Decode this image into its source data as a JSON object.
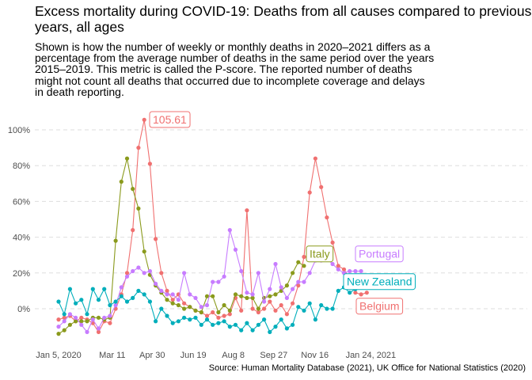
{
  "chart_data": {
    "type": "line",
    "title_line1": "Excess mortality during COVID-19: Deaths from all causes compared to previous",
    "title_line2": "years, all ages",
    "subtitle_lines": [
      "Shown is how the number of weekly or monthly deaths in 2020–2021 differs as a",
      "percentage from the average number of deaths in the same period over the years",
      "2015–2019. This metric is called the P-score. The reported number of deaths",
      "might not count all deaths that occurred due to incomplete coverage and delays",
      "in death reporting."
    ],
    "caption": "Source: Human Mortality Database (2021), UK Office for National Statistics (2020)",
    "y_tick_labels": [
      "0%",
      "20%",
      "40%",
      "60%",
      "80%",
      "100%"
    ],
    "y_ticks": [
      0,
      20,
      40,
      60,
      80,
      100
    ],
    "ylim": [
      -17,
      105.61
    ],
    "x_tick_labels": [
      "Jan 5, 2020",
      "Mar 11",
      "Apr 30",
      "Jun 19",
      "Aug 8",
      "Sep 27",
      "Nov 16",
      "Jan 24, 2021"
    ],
    "x_tick_weeks": [
      0,
      9.4,
      16.4,
      23.6,
      30.6,
      37.7,
      44.9,
      54.7
    ],
    "x_unit": "weeks since Jan 5, 2020",
    "grid": "horizontal dashed",
    "legend": "direct labels",
    "series": [
      {
        "name": "Belgium",
        "color": "#f07070",
        "label_at_week": 51.5,
        "values": [
          -6,
          -5,
          -4,
          -7,
          -5,
          -6,
          -8,
          -13,
          -7,
          -8,
          0,
          8,
          20,
          44,
          90,
          105.61,
          81,
          39,
          20,
          10,
          5,
          8,
          3,
          1,
          -1,
          -2,
          -4,
          -2,
          -5,
          -4,
          -3,
          6,
          -1,
          55,
          0,
          -2,
          0,
          4,
          -1,
          2,
          -3,
          3,
          13,
          29,
          65,
          84,
          68,
          51,
          37,
          24,
          22,
          17,
          9,
          8,
          9
        ],
        "x_start": 0
      },
      {
        "name": "Italy",
        "color": "#8a9a1c",
        "label_at_week": 40,
        "values": [
          -14,
          -12,
          -9,
          -7,
          -7,
          -7,
          -5,
          -5,
          -6,
          -5,
          38,
          71,
          84,
          67,
          56,
          32,
          19,
          13,
          9,
          5,
          3,
          2,
          0,
          1,
          -1,
          -2,
          7,
          7,
          -2,
          2,
          -1,
          8,
          7,
          6,
          6,
          0,
          6,
          7,
          8,
          10,
          13,
          20,
          26,
          24
        ],
        "x_start": 0
      },
      {
        "name": "Portugal",
        "color": "#c77cff",
        "label_at_week": 51.5,
        "values": [
          -10,
          -7,
          -3,
          -5,
          -9,
          -13,
          -6,
          -11,
          -5,
          -4,
          2,
          12,
          18,
          21,
          23,
          20,
          21,
          14,
          10,
          8,
          8,
          5,
          20,
          8,
          6,
          1,
          2,
          15,
          15,
          18,
          44,
          33,
          21,
          9,
          8,
          20,
          4,
          11,
          25,
          12,
          6,
          11,
          15,
          15,
          20,
          27,
          27,
          28,
          25,
          22,
          20,
          21,
          21,
          21
        ],
        "x_start": 0
      },
      {
        "name": "New Zealand",
        "color": "#00aebb",
        "label_at_week": 51.5,
        "values": [
          4,
          -3,
          11,
          3,
          5,
          -3,
          11,
          5,
          11,
          2,
          4,
          7,
          4,
          6,
          10,
          8,
          4,
          -7,
          0,
          -4,
          -8,
          -7,
          -5,
          -6,
          -5,
          -9,
          -6,
          -9,
          -8,
          -7,
          -10,
          -9,
          -12,
          -8,
          -12,
          -9,
          -6,
          -13,
          -10,
          -6,
          -11,
          -9,
          1,
          -1,
          3,
          -6,
          2,
          0,
          0,
          10,
          12,
          9,
          11
        ],
        "x_start": 0
      }
    ],
    "annotation_peak_label": "105.61"
  }
}
